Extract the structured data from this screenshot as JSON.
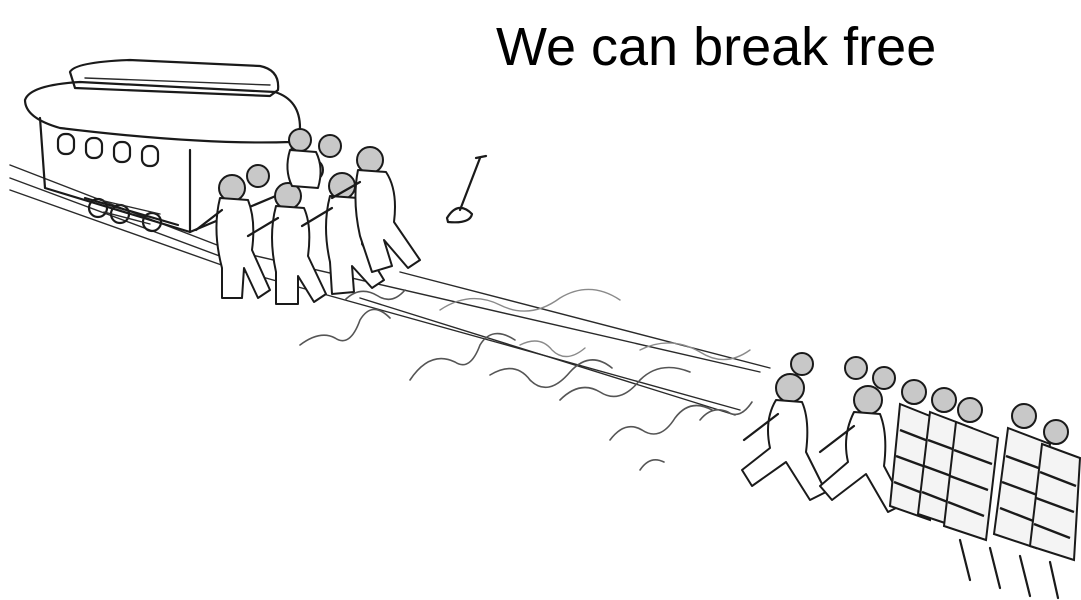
{
  "meme": {
    "caption": "We can break free"
  },
  "scene": {
    "icons": [
      "trolley-icon",
      "lever-icon",
      "rope-icon",
      "person-icon"
    ]
  }
}
